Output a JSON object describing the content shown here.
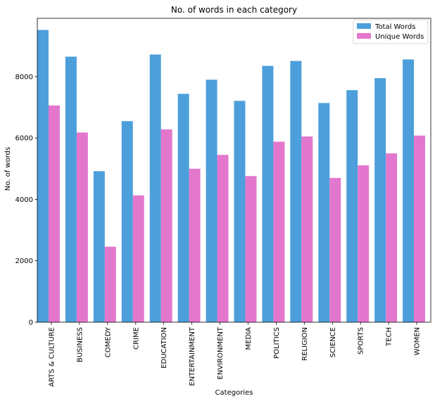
{
  "chart_data": {
    "type": "bar",
    "title": "No. of words in each category",
    "xlabel": "Categories",
    "ylabel": "No. of words",
    "ylim": [
      0,
      9900
    ],
    "yticks": [
      0,
      2000,
      4000,
      6000,
      8000
    ],
    "grid": false,
    "legend_position": "top-right",
    "categories": [
      "ARTS & CULTURE",
      "BUSINESS",
      "COMEDY",
      "CRIME",
      "EDUCATION",
      "ENTERTAINMENT",
      "ENVIRONMENT",
      "MEDIA",
      "POLITICS",
      "RELIGION",
      "SCIENCE",
      "SPORTS",
      "TECH",
      "WOMEN"
    ],
    "series": [
      {
        "name": "Total Words",
        "color": "#4c9fdb",
        "values": [
          9520,
          8650,
          4920,
          6550,
          8720,
          7440,
          7900,
          7210,
          8350,
          8510,
          7140,
          7560,
          7950,
          8560
        ]
      },
      {
        "name": "Unique Words",
        "color": "#e377cd",
        "values": [
          7060,
          6180,
          2460,
          4130,
          6280,
          5000,
          5450,
          4760,
          5880,
          6050,
          4700,
          5110,
          5500,
          6080
        ]
      }
    ]
  }
}
